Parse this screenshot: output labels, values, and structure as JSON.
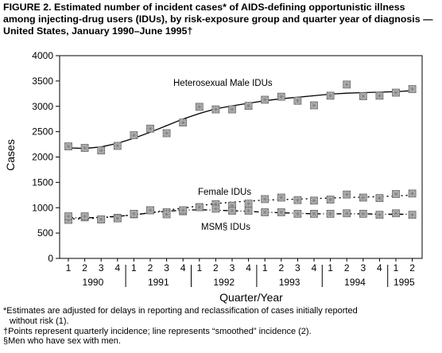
{
  "title": "FIGURE 2. Estimated number of incident cases* of AIDS-defining opportunistic illness among injecting-drug users (IDUs), by risk-exposure group and quarter year of diagnosis — United States, January 1990–June 1995†",
  "footnotes": {
    "f1_line1": "*Estimates are adjusted for delays in reporting and reclassification of cases initially reported",
    "f1_line2": "without risk (1).",
    "f2": "†Points represent quarterly incidence; line represents “smoothed” incidence (2).",
    "f3": "§Men who have sex with men."
  },
  "chart_data": {
    "type": "scatter",
    "ylabel": "Cases",
    "xlabel": "Quarter/Year",
    "ylim": [
      0,
      4000
    ],
    "yticks": [
      "0",
      "500",
      "1000",
      "1500",
      "2000",
      "2500",
      "3000",
      "3500",
      "4000"
    ],
    "quarter_labels": [
      "1",
      "2",
      "3",
      "4",
      "1",
      "2",
      "3",
      "4",
      "1",
      "2",
      "3",
      "4",
      "1",
      "2",
      "3",
      "4",
      "1",
      "2",
      "3",
      "4",
      "1",
      "2"
    ],
    "years": [
      "1990",
      "1991",
      "1992",
      "1993",
      "1994",
      "1995"
    ],
    "series": [
      {
        "name": "Heterosexual Male IDUs",
        "points": [
          2210,
          2180,
          2130,
          2220,
          2430,
          2560,
          2470,
          2680,
          2990,
          2940,
          2940,
          3010,
          3130,
          3190,
          3110,
          3020,
          3210,
          3430,
          3200,
          3210,
          3270,
          3340
        ],
        "smoothed": [
          2180,
          2170,
          2200,
          2270,
          2370,
          2490,
          2620,
          2750,
          2860,
          2950,
          3010,
          3060,
          3110,
          3150,
          3180,
          3210,
          3240,
          3260,
          3270,
          3280,
          3290,
          3310
        ]
      },
      {
        "name": "Female IDUs",
        "points": [
          760,
          810,
          770,
          800,
          870,
          950,
          910,
          930,
          1010,
          1070,
          1040,
          1080,
          1170,
          1200,
          1150,
          1140,
          1160,
          1260,
          1200,
          1190,
          1270,
          1280
        ],
        "smoothed": [
          780,
          780,
          800,
          830,
          860,
          900,
          950,
          990,
          1040,
          1080,
          1110,
          1130,
          1150,
          1160,
          1170,
          1180,
          1190,
          1200,
          1210,
          1220,
          1230,
          1250
        ]
      },
      {
        "name": "MSM§ IDUs",
        "points": [
          830,
          830,
          770,
          790,
          880,
          950,
          870,
          950,
          1010,
          980,
          940,
          940,
          910,
          910,
          880,
          880,
          880,
          890,
          880,
          860,
          890,
          860
        ],
        "smoothed": [
          800,
          800,
          810,
          830,
          860,
          900,
          930,
          950,
          960,
          950,
          940,
          930,
          910,
          900,
          890,
          880,
          880,
          880,
          880,
          870,
          870,
          870
        ]
      }
    ],
    "annotations": [
      "Heterosexual Male IDUs",
      "Female IDUs",
      "MSM§ IDUs"
    ],
    "grid": false,
    "legend": "none"
  }
}
